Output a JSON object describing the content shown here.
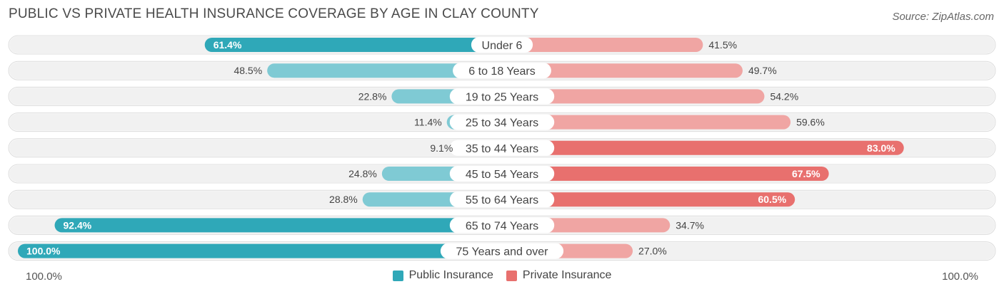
{
  "title": "PUBLIC VS PRIVATE HEALTH INSURANCE COVERAGE BY AGE IN CLAY COUNTY",
  "source": "Source: ZipAtlas.com",
  "axis": {
    "left_label": "100.0%",
    "right_label": "100.0%"
  },
  "colors": {
    "public": "#2fa8b8",
    "public_light": "#7fcad4",
    "private": "#e8706e",
    "private_light": "#f0a5a3",
    "row_bg": "#f1f1f1"
  },
  "legend": [
    {
      "label": "Public Insurance",
      "color": "#2fa8b8"
    },
    {
      "label": "Private Insurance",
      "color": "#e8706e"
    }
  ],
  "chart_data": {
    "type": "bar",
    "orientation": "horizontal-diverging",
    "categories": [
      "Under 6",
      "6 to 18 Years",
      "19 to 25 Years",
      "25 to 34 Years",
      "35 to 44 Years",
      "45 to 54 Years",
      "55 to 64 Years",
      "65 to 74 Years",
      "75 Years and over"
    ],
    "series": [
      {
        "name": "Public Insurance",
        "values": [
          61.4,
          48.5,
          22.8,
          11.4,
          9.1,
          24.8,
          28.8,
          92.4,
          100.0
        ],
        "labels": [
          "61.4%",
          "48.5%",
          "22.8%",
          "11.4%",
          "9.1%",
          "24.8%",
          "28.8%",
          "92.4%",
          "100.0%"
        ]
      },
      {
        "name": "Private Insurance",
        "values": [
          41.5,
          49.7,
          54.2,
          59.6,
          83.0,
          67.5,
          60.5,
          34.7,
          27.0
        ],
        "labels": [
          "41.5%",
          "49.7%",
          "54.2%",
          "59.6%",
          "83.0%",
          "67.5%",
          "60.5%",
          "34.7%",
          "27.0%"
        ]
      }
    ],
    "xlim": [
      0,
      100
    ],
    "legend_position": "bottom-center"
  }
}
